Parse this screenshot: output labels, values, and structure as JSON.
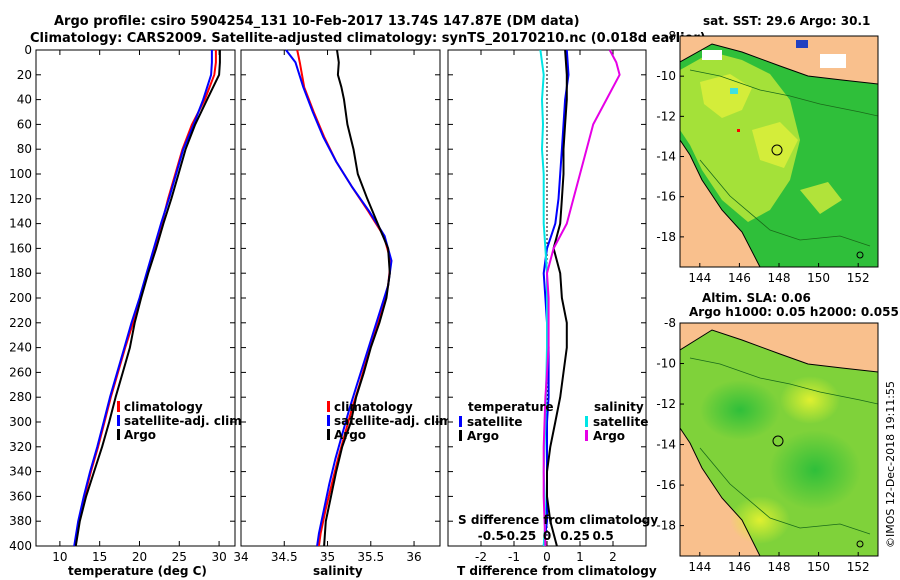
{
  "title_line1": "Argo profile: csiro 5904254_131 10-Feb-2017 13.74S 147.87E (DM data)",
  "title_line2": "Climatology: CARS2009. Satellite-adjusted climatology: synTS_20170210.nc (0.018d earlier)",
  "credit": "©IMOS 12-Dec-2018 19:11:55",
  "colors": {
    "climatology": "#ff0000",
    "satellite": "#0000ff",
    "argo": "#000000",
    "satellite_s": "#00e5e5",
    "argo_s": "#e600e6"
  },
  "panels": {
    "temperature": {
      "xlabel": "temperature (deg C)",
      "legend": [
        "climatology",
        "satellite-adj. clim.",
        "Argo"
      ]
    },
    "salinity": {
      "xlabel": "salinity",
      "legend": [
        "climatology",
        "satellite-adj. clim.",
        "Argo"
      ]
    },
    "difference": {
      "xlabel": "T difference from climatology",
      "s_axis_label": "S difference from climatology",
      "legend_t_title": "temperature",
      "legend_s_title": "salinity",
      "legend_t": [
        "satellite",
        "Argo"
      ],
      "legend_s": [
        "satellite",
        "Argo"
      ]
    },
    "sst_map": {
      "title": "sat. SST: 29.6 Argo: 30.1"
    },
    "sla_map": {
      "title1": "Altim. SLA: 0.06",
      "title2": "Argo h1000: 0.05 h2000: 0.055"
    }
  },
  "chart_data": [
    {
      "type": "line",
      "id": "temperature",
      "xlabel": "temperature (deg C)",
      "ylabel": "depth",
      "xlim": [
        7,
        32
      ],
      "ylim": [
        400,
        0
      ],
      "xticks": [
        10,
        15,
        20,
        25,
        30
      ],
      "yticks": [
        0,
        20,
        40,
        60,
        80,
        100,
        120,
        140,
        160,
        180,
        200,
        220,
        240,
        260,
        280,
        300,
        320,
        340,
        360,
        380,
        400
      ],
      "series": [
        {
          "name": "climatology",
          "color": "#ff0000",
          "points": [
            [
              29.6,
              0
            ],
            [
              29.6,
              10
            ],
            [
              29.4,
              20
            ],
            [
              28.2,
              40
            ],
            [
              26.6,
              60
            ],
            [
              25.4,
              80
            ],
            [
              24.5,
              100
            ],
            [
              23.6,
              120
            ],
            [
              22.8,
              140
            ],
            [
              21.9,
              160
            ],
            [
              21.0,
              180
            ],
            [
              20.1,
              200
            ],
            [
              19.2,
              220
            ],
            [
              18.2,
              240
            ],
            [
              17.3,
              260
            ],
            [
              16.4,
              280
            ],
            [
              15.6,
              300
            ],
            [
              14.8,
              320
            ],
            [
              13.9,
              340
            ],
            [
              13.1,
              360
            ],
            [
              12.4,
              380
            ],
            [
              11.9,
              400
            ]
          ]
        },
        {
          "name": "satellite-adj. clim.",
          "color": "#0000ff",
          "points": [
            [
              29.1,
              0
            ],
            [
              29.1,
              10
            ],
            [
              29.0,
              20
            ],
            [
              28.0,
              40
            ],
            [
              26.8,
              60
            ],
            [
              25.5,
              80
            ],
            [
              24.6,
              100
            ],
            [
              23.7,
              120
            ],
            [
              22.7,
              140
            ],
            [
              21.8,
              160
            ],
            [
              20.9,
              180
            ],
            [
              20.0,
              200
            ],
            [
              19.0,
              220
            ],
            [
              18.1,
              240
            ],
            [
              17.2,
              260
            ],
            [
              16.3,
              280
            ],
            [
              15.5,
              300
            ],
            [
              14.7,
              320
            ],
            [
              13.8,
              340
            ],
            [
              13.0,
              360
            ],
            [
              12.3,
              380
            ],
            [
              11.8,
              400
            ]
          ]
        },
        {
          "name": "Argo",
          "color": "#000000",
          "points": [
            [
              30.1,
              0
            ],
            [
              30.1,
              10
            ],
            [
              30.0,
              20
            ],
            [
              28.5,
              40
            ],
            [
              27.0,
              60
            ],
            [
              25.8,
              80
            ],
            [
              24.9,
              100
            ],
            [
              24.0,
              120
            ],
            [
              23.0,
              140
            ],
            [
              22.1,
              160
            ],
            [
              21.1,
              180
            ],
            [
              20.2,
              200
            ],
            [
              19.4,
              220
            ],
            [
              18.8,
              240
            ],
            [
              17.9,
              260
            ],
            [
              17.0,
              280
            ],
            [
              16.2,
              300
            ],
            [
              15.3,
              320
            ],
            [
              14.3,
              340
            ],
            [
              13.3,
              360
            ],
            [
              12.5,
              380
            ],
            [
              12.0,
              400
            ]
          ]
        }
      ]
    },
    {
      "type": "line",
      "id": "salinity",
      "xlabel": "salinity",
      "ylabel": "depth",
      "xlim": [
        34,
        36.3
      ],
      "ylim": [
        400,
        0
      ],
      "xticks": [
        34,
        34.5,
        35,
        35.5,
        36
      ],
      "series": [
        {
          "name": "climatology",
          "color": "#ff0000",
          "points": [
            [
              34.65,
              0
            ],
            [
              34.68,
              10
            ],
            [
              34.73,
              30
            ],
            [
              34.84,
              50
            ],
            [
              34.96,
              70
            ],
            [
              35.1,
              90
            ],
            [
              35.28,
              110
            ],
            [
              35.47,
              130
            ],
            [
              35.65,
              150
            ],
            [
              35.73,
              170
            ],
            [
              35.7,
              190
            ],
            [
              35.62,
              210
            ],
            [
              35.54,
              230
            ],
            [
              35.45,
              250
            ],
            [
              35.37,
              270
            ],
            [
              35.28,
              290
            ],
            [
              35.2,
              310
            ],
            [
              35.12,
              330
            ],
            [
              35.05,
              350
            ],
            [
              34.98,
              370
            ],
            [
              34.92,
              390
            ],
            [
              34.9,
              400
            ]
          ]
        },
        {
          "name": "satellite-adj. clim.",
          "color": "#0000ff",
          "points": [
            [
              34.52,
              0
            ],
            [
              34.63,
              10
            ],
            [
              34.72,
              30
            ],
            [
              34.83,
              50
            ],
            [
              34.95,
              70
            ],
            [
              35.1,
              90
            ],
            [
              35.28,
              110
            ],
            [
              35.48,
              130
            ],
            [
              35.66,
              150
            ],
            [
              35.74,
              170
            ],
            [
              35.7,
              190
            ],
            [
              35.61,
              210
            ],
            [
              35.52,
              230
            ],
            [
              35.43,
              250
            ],
            [
              35.34,
              270
            ],
            [
              35.25,
              290
            ],
            [
              35.17,
              310
            ],
            [
              35.09,
              330
            ],
            [
              35.02,
              350
            ],
            [
              34.96,
              370
            ],
            [
              34.9,
              390
            ],
            [
              34.88,
              400
            ]
          ]
        },
        {
          "name": "Argo",
          "color": "#000000",
          "points": [
            [
              35.11,
              0
            ],
            [
              35.13,
              10
            ],
            [
              35.12,
              20
            ],
            [
              35.16,
              30
            ],
            [
              35.19,
              40
            ],
            [
              35.23,
              60
            ],
            [
              35.3,
              80
            ],
            [
              35.35,
              100
            ],
            [
              35.46,
              120
            ],
            [
              35.58,
              140
            ],
            [
              35.7,
              160
            ],
            [
              35.72,
              180
            ],
            [
              35.68,
              200
            ],
            [
              35.6,
              220
            ],
            [
              35.5,
              240
            ],
            [
              35.42,
              260
            ],
            [
              35.33,
              280
            ],
            [
              35.27,
              300
            ],
            [
              35.17,
              320
            ],
            [
              35.1,
              340
            ],
            [
              35.04,
              360
            ],
            [
              34.98,
              380
            ],
            [
              34.96,
              400
            ]
          ]
        }
      ]
    },
    {
      "type": "line",
      "id": "difference",
      "xlabel": "T difference from climatology",
      "s_axis_label": "S difference from climatology",
      "xlim": [
        -3,
        3
      ],
      "ylim": [
        400,
        0
      ],
      "xticks": [
        -2,
        -1,
        0,
        1,
        2
      ],
      "s_xticks": [
        -0.5,
        -0.25,
        0,
        0.25,
        0.5
      ],
      "series": [
        {
          "name": "temperature satellite",
          "color": "#0000ff",
          "points": [
            [
              0.6,
              0
            ],
            [
              0.65,
              20
            ],
            [
              0.55,
              40
            ],
            [
              0.5,
              60
            ],
            [
              0.45,
              80
            ],
            [
              0.4,
              100
            ],
            [
              0.35,
              120
            ],
            [
              0.25,
              140
            ],
            [
              0.0,
              160
            ],
            [
              -0.1,
              180
            ],
            [
              -0.05,
              200
            ],
            [
              0.0,
              220
            ],
            [
              0.05,
              240
            ],
            [
              0.05,
              280
            ],
            [
              0.0,
              300
            ],
            [
              0.0,
              340
            ],
            [
              0.0,
              380
            ],
            [
              -0.1,
              400
            ]
          ]
        },
        {
          "name": "temperature Argo",
          "color": "#000000",
          "points": [
            [
              0.55,
              0
            ],
            [
              0.6,
              20
            ],
            [
              0.6,
              40
            ],
            [
              0.55,
              60
            ],
            [
              0.5,
              80
            ],
            [
              0.5,
              100
            ],
            [
              0.45,
              120
            ],
            [
              0.4,
              140
            ],
            [
              0.2,
              160
            ],
            [
              0.4,
              180
            ],
            [
              0.45,
              200
            ],
            [
              0.6,
              220
            ],
            [
              0.6,
              240
            ],
            [
              0.5,
              260
            ],
            [
              0.4,
              280
            ],
            [
              0.25,
              300
            ],
            [
              0.1,
              320
            ],
            [
              0.0,
              340
            ],
            [
              0.0,
              360
            ],
            [
              0.1,
              380
            ],
            [
              0.3,
              400
            ]
          ]
        },
        {
          "name": "salinity satellite",
          "color": "#00e5e5",
          "points": [
            [
              -0.2,
              0
            ],
            [
              -0.1,
              20
            ],
            [
              -0.15,
              40
            ],
            [
              -0.12,
              60
            ],
            [
              -0.15,
              80
            ],
            [
              -0.1,
              100
            ],
            [
              -0.1,
              120
            ],
            [
              -0.1,
              140
            ],
            [
              -0.05,
              160
            ],
            [
              0.0,
              180
            ],
            [
              0.0,
              200
            ],
            [
              0.0,
              240
            ],
            [
              -0.05,
              300
            ],
            [
              -0.1,
              340
            ],
            [
              -0.05,
              380
            ],
            [
              -0.1,
              400
            ]
          ]
        },
        {
          "name": "salinity Argo",
          "color": "#e600e6",
          "points": [
            [
              1.9,
              0
            ],
            [
              2.1,
              10
            ],
            [
              2.2,
              20
            ],
            [
              1.8,
              40
            ],
            [
              1.4,
              60
            ],
            [
              1.2,
              80
            ],
            [
              1.0,
              100
            ],
            [
              0.8,
              120
            ],
            [
              0.6,
              140
            ],
            [
              0.2,
              160
            ],
            [
              0.0,
              180
            ],
            [
              0.05,
              200
            ],
            [
              0.05,
              240
            ],
            [
              -0.05,
              280
            ],
            [
              -0.1,
              320
            ],
            [
              -0.1,
              360
            ],
            [
              -0.05,
              400
            ]
          ]
        }
      ]
    },
    {
      "type": "heatmap",
      "id": "sst_map",
      "title": "sat. SST: 29.6 Argo: 30.1",
      "xlim": [
        143,
        153
      ],
      "ylim": [
        -19.5,
        -8
      ],
      "xticks": [
        144,
        146,
        148,
        150,
        152
      ],
      "yticks": [
        -8,
        -10,
        -12,
        -14,
        -16,
        -18
      ],
      "argo_position": [
        147.87,
        -13.74
      ]
    },
    {
      "type": "heatmap",
      "id": "sla_map",
      "title": "Altim. SLA: 0.06 / Argo h1000: 0.05 h2000: 0.055",
      "xlim": [
        143,
        153
      ],
      "ylim": [
        -19.5,
        -8
      ],
      "xticks": [
        144,
        146,
        148,
        150,
        152
      ],
      "yticks": [
        -8,
        -10,
        -12,
        -14,
        -16,
        -18
      ],
      "argo_position": [
        147.87,
        -13.74
      ]
    }
  ]
}
